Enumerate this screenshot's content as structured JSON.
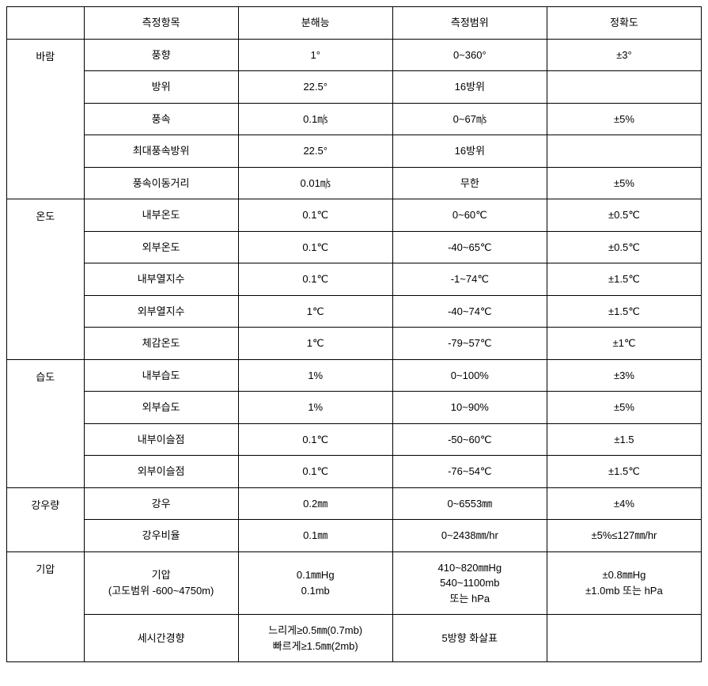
{
  "table": {
    "type": "table",
    "border_color": "#000000",
    "background_color": "#ffffff",
    "text_color": "#000000",
    "font_size_pt": 10,
    "column_widths_pct": [
      11,
      22,
      22,
      22,
      22
    ],
    "columns": [
      "",
      "측정항목",
      "분해능",
      "측정범위",
      "정확도"
    ],
    "groups": [
      {
        "category": "바람",
        "rows": [
          {
            "item": "풍향",
            "resolution": "1°",
            "range": "0~360°",
            "accuracy": "±3°"
          },
          {
            "item": "방위",
            "resolution": "22.5°",
            "range": "16방위",
            "accuracy": ""
          },
          {
            "item": "풍속",
            "resolution": "0.1㎧",
            "range": "0~67㎧",
            "accuracy": "±5%"
          },
          {
            "item": "최대풍속방위",
            "resolution": "22.5°",
            "range": "16방위",
            "accuracy": ""
          },
          {
            "item": "풍속이동거리",
            "resolution": "0.01㎧",
            "range": "무한",
            "accuracy": "±5%"
          }
        ]
      },
      {
        "category": "온도",
        "rows": [
          {
            "item": "내부온도",
            "resolution": "0.1℃",
            "range": "0~60℃",
            "accuracy": "±0.5℃"
          },
          {
            "item": "외부온도",
            "resolution": "0.1℃",
            "range": "-40~65℃",
            "accuracy": "±0.5℃"
          },
          {
            "item": "내부열지수",
            "resolution": "0.1℃",
            "range": "-1~74℃",
            "accuracy": "±1.5℃"
          },
          {
            "item": "외부열지수",
            "resolution": "1℃",
            "range": "-40~74℃",
            "accuracy": "±1.5℃"
          },
          {
            "item": "체감온도",
            "resolution": "1℃",
            "range": "-79~57℃",
            "accuracy": "±1℃"
          }
        ]
      },
      {
        "category": "습도",
        "rows": [
          {
            "item": "내부습도",
            "resolution": "1%",
            "range": "0~100%",
            "accuracy": "±3%"
          },
          {
            "item": "외부습도",
            "resolution": "1%",
            "range": "10~90%",
            "accuracy": "±5%"
          },
          {
            "item": "내부이슬점",
            "resolution": "0.1℃",
            "range": "-50~60℃",
            "accuracy": "±1.5"
          },
          {
            "item": "외부이슬점",
            "resolution": "0.1℃",
            "range": "-76~54℃",
            "accuracy": "±1.5℃"
          }
        ]
      },
      {
        "category": "강우량",
        "rows": [
          {
            "item": "강우",
            "resolution": "0.2㎜",
            "range": "0~6553㎜",
            "accuracy": "±4%"
          },
          {
            "item": "강우비율",
            "resolution": "0.1㎜",
            "range": "0~2438㎜/hr",
            "accuracy": "±5%≤127㎜/hr"
          }
        ]
      },
      {
        "category": "기압",
        "rows": [
          {
            "item": "기압\n(고도범위 -600~4750m)",
            "resolution": "0.1㎜Hg\n0.1mb",
            "range": "410~820㎜Hg\n540~1100mb\n또는 hPa",
            "accuracy": "±0.8㎜Hg\n±1.0mb 또는 hPa"
          },
          {
            "item": "세시간경향",
            "resolution": "느리게≥0.5㎜(0.7mb)\n빠르게≥1.5㎜(2mb)",
            "range": "5방향 화살표",
            "accuracy": ""
          }
        ]
      }
    ]
  }
}
